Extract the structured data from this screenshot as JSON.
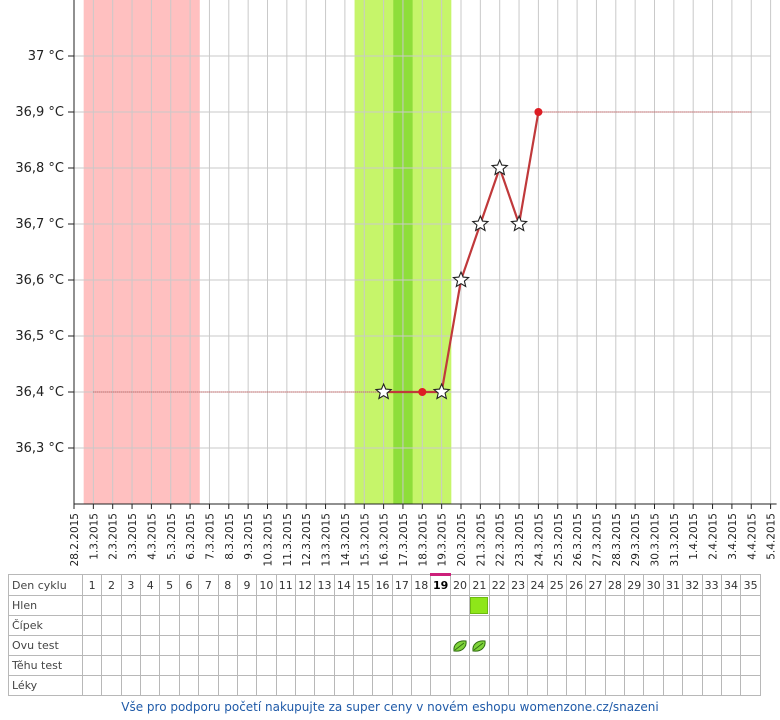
{
  "chart_data": {
    "type": "line",
    "x_dates": [
      "28.2.2015",
      "1.3.2015",
      "2.3.2015",
      "3.3.2015",
      "4.3.2015",
      "5.3.2015",
      "6.3.2015",
      "7.3.2015",
      "8.3.2015",
      "9.3.2015",
      "10.3.2015",
      "11.3.2015",
      "12.3.2015",
      "13.3.2015",
      "14.3.2015",
      "15.3.2015",
      "16.3.2015",
      "17.3.2015",
      "18.3.2015",
      "19.3.2015",
      "20.3.2015",
      "21.3.2015",
      "22.3.2015",
      "23.3.2015",
      "24.3.2015",
      "25.3.2015",
      "26.3.2015",
      "27.3.2015",
      "28.3.2015",
      "29.3.2015",
      "30.3.2015",
      "31.3.2015",
      "1.4.2015",
      "2.4.2015",
      "3.4.2015",
      "4.4.2015",
      "5.4.2015"
    ],
    "y_ticks": [
      "36,3 °C",
      "36,4 °C",
      "36,5 °C",
      "36,6 °C",
      "36,7 °C",
      "36,8 °C",
      "36,9 °C",
      "37 °C"
    ],
    "ylim": [
      36.2,
      37.1
    ],
    "baseline_low": 36.4,
    "baseline_high": 36.9,
    "series": [
      {
        "x": [
          "16.3.2015",
          "18.3.2015",
          "19.3.2015",
          "20.3.2015",
          "21.3.2015",
          "22.3.2015",
          "23.3.2015",
          "24.3.2015"
        ],
        "y": [
          36.4,
          36.4,
          36.4,
          36.6,
          36.7,
          36.8,
          36.7,
          36.9
        ],
        "markers": [
          "star",
          "dot",
          "star",
          "star",
          "star",
          "star",
          "star",
          "dot"
        ]
      }
    ],
    "bands": [
      {
        "kind": "menstruation",
        "from": "1.3.2015",
        "to": "6.3.2015",
        "color": "#ffc0c0"
      },
      {
        "kind": "fertile",
        "from": "15.3.2015",
        "to": "19.3.2015",
        "color": "#c6f56a"
      },
      {
        "kind": "ovulation",
        "from": "17.3.2015",
        "to": "17.3.2015",
        "color": "#8ede3a"
      }
    ],
    "grid": true,
    "line_color": "#c0393b"
  },
  "table": {
    "row_labels": [
      "Den cyklu",
      "Hlen",
      "Čípek",
      "Ovu test",
      "Těhu test",
      "Léky"
    ],
    "days": [
      "1",
      "2",
      "3",
      "4",
      "5",
      "6",
      "7",
      "8",
      "9",
      "10",
      "11",
      "12",
      "13",
      "14",
      "15",
      "16",
      "17",
      "18",
      "19",
      "20",
      "21",
      "22",
      "23",
      "24",
      "25",
      "26",
      "27",
      "28",
      "29",
      "30",
      "31",
      "32",
      "33",
      "34",
      "35"
    ],
    "today_day": "19",
    "hlen_marks": [
      "21"
    ],
    "ovu_test_marks": [
      "20",
      "21"
    ]
  },
  "footer": {
    "text": "Vše pro podporu početí nakupujte za super ceny v novém eshopu womenzone.cz/snazeni"
  }
}
